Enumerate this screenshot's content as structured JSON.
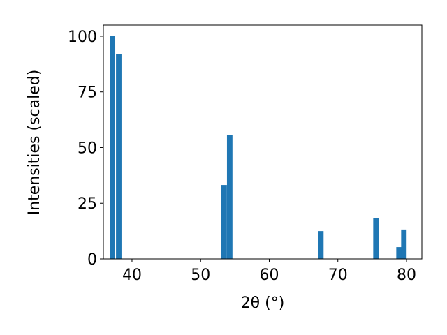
{
  "chart_data": {
    "type": "bar",
    "x": [
      37.15,
      38.07,
      53.43,
      54.24,
      67.52,
      75.55,
      78.91,
      79.62
    ],
    "values": [
      100,
      92,
      33.2,
      55.5,
      12.5,
      18.2,
      5.3,
      13.2
    ],
    "bar_width": 0.8,
    "color": "#1f77b4",
    "xlabel": "2θ (°)",
    "ylabel": "Intensities (scaled)",
    "xlim": [
      35.83,
      82.24
    ],
    "xticks": [
      40,
      50,
      60,
      70,
      80
    ],
    "ylim": [
      0,
      105
    ],
    "yticks": [
      0,
      25,
      50,
      75,
      100
    ],
    "grid": false
  }
}
